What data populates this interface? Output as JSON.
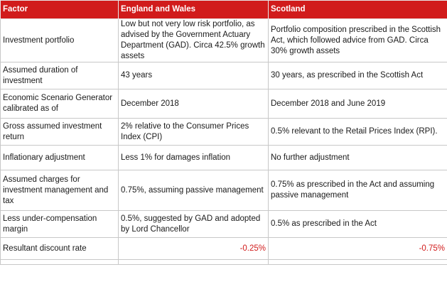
{
  "table": {
    "headers": [
      "Factor",
      "England and Wales",
      "Scotland"
    ],
    "rows": [
      {
        "factor": "Investment portfolio",
        "ew": "Low but not very low risk portfolio, as advised by the Government Actuary Department (GAD). Circa 42.5% growth assets",
        "sc": "Portfolio composition prescribed in the Scottish Act, which followed advice from GAD. Circa 30% growth assets"
      },
      {
        "factor": "Assumed duration of investment",
        "ew": "43 years",
        "sc": "30 years, as prescribed in the Scottish Act"
      },
      {
        "factor": "Economic Scenario Generator calibrated as of",
        "ew": "December 2018",
        "sc": "December 2018 and June 2019"
      },
      {
        "factor": "Gross assumed investment return",
        "ew": "2% relative to the Consumer Prices Index (CPI)",
        "sc": "0.5% relevant to the Retail Prices Index (RPI)."
      },
      {
        "factor": "Inflationary adjustment",
        "ew": "Less 1% for damages inflation",
        "sc": "No further adjustment"
      },
      {
        "factor": "Assumed charges for investment management and tax",
        "ew": "0.75%, assuming passive management",
        "sc": "0.75% as prescribed in the Act and assuming passive management"
      },
      {
        "factor": "Less under-compensation margin",
        "ew": "0.5%, suggested by GAD and adopted by Lord Chancellor",
        "sc": "0.5% as prescribed in the Act"
      },
      {
        "factor": "Resultant discount rate",
        "ew": "-0.25%",
        "sc": "-0.75%"
      }
    ]
  },
  "colors": {
    "header_bg": "#d11b1b",
    "header_text": "#ffffff",
    "rate_text": "#d11b1b",
    "border": "#c8c8c8"
  }
}
